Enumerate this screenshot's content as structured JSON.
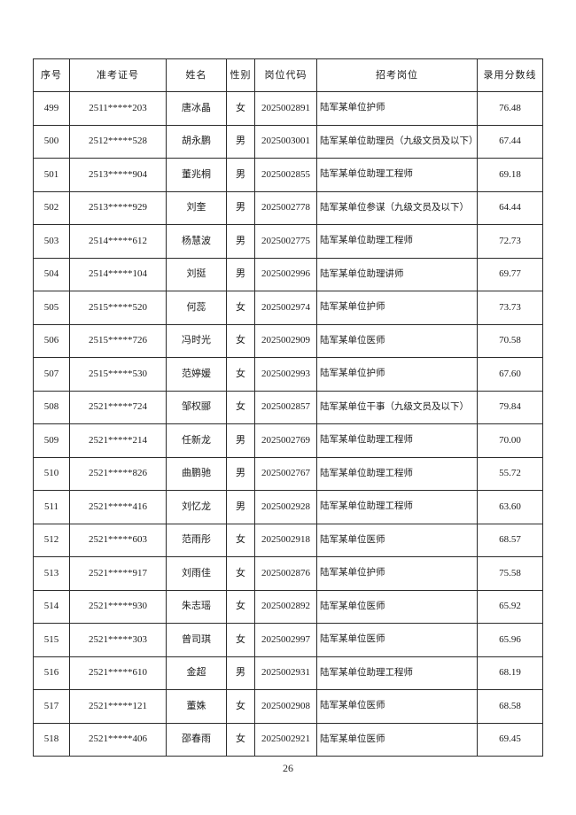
{
  "page": {
    "number": "26"
  },
  "table": {
    "headers": [
      "序号",
      "准考证号",
      "姓名",
      "性别",
      "岗位代码",
      "招考岗位",
      "录用分数线"
    ],
    "rows": [
      {
        "no": "499",
        "ticket": "2511*****203",
        "name": "唐冰晶",
        "gender": "女",
        "code": "2025002891",
        "position": "陆军某单位护师",
        "score": "76.48"
      },
      {
        "no": "500",
        "ticket": "2512*****528",
        "name": "胡永鹏",
        "gender": "男",
        "code": "2025003001",
        "position": "陆军某单位助理员（九级文员及以下）",
        "score": "67.44"
      },
      {
        "no": "501",
        "ticket": "2513*****904",
        "name": "董兆桐",
        "gender": "男",
        "code": "2025002855",
        "position": "陆军某单位助理工程师",
        "score": "69.18"
      },
      {
        "no": "502",
        "ticket": "2513*****929",
        "name": "刘奎",
        "gender": "男",
        "code": "2025002778",
        "position": "陆军某单位参谋（九级文员及以下）",
        "score": "64.44"
      },
      {
        "no": "503",
        "ticket": "2514*****612",
        "name": "杨慧波",
        "gender": "男",
        "code": "2025002775",
        "position": "陆军某单位助理工程师",
        "score": "72.73"
      },
      {
        "no": "504",
        "ticket": "2514*****104",
        "name": "刘挺",
        "gender": "男",
        "code": "2025002996",
        "position": "陆军某单位助理讲师",
        "score": "69.77"
      },
      {
        "no": "505",
        "ticket": "2515*****520",
        "name": "何蕊",
        "gender": "女",
        "code": "2025002974",
        "position": "陆军某单位护师",
        "score": "73.73"
      },
      {
        "no": "506",
        "ticket": "2515*****726",
        "name": "冯时光",
        "gender": "女",
        "code": "2025002909",
        "position": "陆军某单位医师",
        "score": "70.58"
      },
      {
        "no": "507",
        "ticket": "2515*****530",
        "name": "范婷媛",
        "gender": "女",
        "code": "2025002993",
        "position": "陆军某单位护师",
        "score": "67.60"
      },
      {
        "no": "508",
        "ticket": "2521*****724",
        "name": "邹权郦",
        "gender": "女",
        "code": "2025002857",
        "position": "陆军某单位干事（九级文员及以下）",
        "score": "79.84"
      },
      {
        "no": "509",
        "ticket": "2521*****214",
        "name": "任新龙",
        "gender": "男",
        "code": "2025002769",
        "position": "陆军某单位助理工程师",
        "score": "70.00"
      },
      {
        "no": "510",
        "ticket": "2521*****826",
        "name": "曲鹏驰",
        "gender": "男",
        "code": "2025002767",
        "position": "陆军某单位助理工程师",
        "score": "55.72"
      },
      {
        "no": "511",
        "ticket": "2521*****416",
        "name": "刘忆龙",
        "gender": "男",
        "code": "2025002928",
        "position": "陆军某单位助理工程师",
        "score": "63.60"
      },
      {
        "no": "512",
        "ticket": "2521*****603",
        "name": "范雨彤",
        "gender": "女",
        "code": "2025002918",
        "position": "陆军某单位医师",
        "score": "68.57"
      },
      {
        "no": "513",
        "ticket": "2521*****917",
        "name": "刘雨佳",
        "gender": "女",
        "code": "2025002876",
        "position": "陆军某单位护师",
        "score": "75.58"
      },
      {
        "no": "514",
        "ticket": "2521*****930",
        "name": "朱志瑶",
        "gender": "女",
        "code": "2025002892",
        "position": "陆军某单位医师",
        "score": "65.92"
      },
      {
        "no": "515",
        "ticket": "2521*****303",
        "name": "曾司琪",
        "gender": "女",
        "code": "2025002997",
        "position": "陆军某单位医师",
        "score": "65.96"
      },
      {
        "no": "516",
        "ticket": "2521*****610",
        "name": "金超",
        "gender": "男",
        "code": "2025002931",
        "position": "陆军某单位助理工程师",
        "score": "68.19"
      },
      {
        "no": "517",
        "ticket": "2521*****121",
        "name": "董姝",
        "gender": "女",
        "code": "2025002908",
        "position": "陆军某单位医师",
        "score": "68.58"
      },
      {
        "no": "518",
        "ticket": "2521*****406",
        "name": "邵春雨",
        "gender": "女",
        "code": "2025002921",
        "position": "陆军某单位医师",
        "score": "69.45"
      }
    ]
  }
}
